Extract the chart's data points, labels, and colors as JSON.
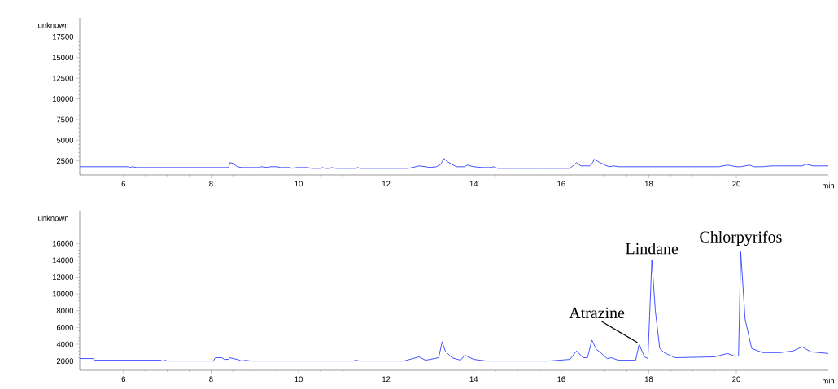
{
  "chart_data": [
    {
      "type": "line",
      "xlabel": "min",
      "ylabel": "unknown",
      "xlim": [
        5,
        22.1
      ],
      "ylim": [
        800,
        19800
      ],
      "xticks": [
        6,
        8,
        10,
        12,
        14,
        16,
        18,
        20
      ],
      "yticks": [
        2500,
        5000,
        7500,
        10000,
        12500,
        15000,
        17500
      ],
      "series": [
        {
          "color": "#3040ff",
          "x": [
            5.0,
            6.1,
            6.15,
            6.2,
            6.3,
            8.4,
            8.43,
            8.5,
            8.6,
            8.7,
            9.1,
            9.15,
            9.3,
            9.35,
            9.5,
            9.6,
            9.8,
            9.85,
            9.95,
            10.2,
            10.3,
            10.5,
            10.55,
            10.6,
            10.7,
            10.75,
            10.85,
            11.3,
            11.35,
            11.4,
            12.5,
            12.6,
            12.75,
            12.9,
            13.0,
            13.15,
            13.25,
            13.32,
            13.4,
            13.5,
            13.6,
            13.8,
            13.85,
            14.0,
            14.2,
            14.4,
            14.45,
            14.55,
            16.2,
            16.35,
            16.45,
            16.65,
            16.72,
            16.75,
            16.85,
            17.0,
            17.1,
            17.2,
            17.3,
            19.6,
            19.8,
            20.0,
            20.1,
            20.3,
            20.4,
            20.6,
            20.8,
            21.5,
            21.6,
            21.75,
            22.1
          ],
          "values": [
            1800,
            1800,
            1700,
            1800,
            1700,
            1700,
            2300,
            2200,
            1800,
            1700,
            1700,
            1800,
            1700,
            1800,
            1800,
            1700,
            1700,
            1600,
            1700,
            1700,
            1600,
            1600,
            1700,
            1600,
            1600,
            1700,
            1600,
            1600,
            1700,
            1600,
            1600,
            1700,
            1900,
            1800,
            1700,
            1800,
            2100,
            2800,
            2400,
            2100,
            1800,
            1800,
            2000,
            1800,
            1700,
            1700,
            1800,
            1600,
            1600,
            2300,
            1900,
            1900,
            2300,
            2700,
            2400,
            2000,
            1800,
            1900,
            1800,
            1800,
            2000,
            1800,
            1800,
            2000,
            1800,
            1800,
            1900,
            1900,
            2100,
            1900,
            1900
          ]
        }
      ]
    },
    {
      "type": "line",
      "xlabel": "min",
      "ylabel": "unknown",
      "xlim": [
        5,
        22.1
      ],
      "ylim": [
        900,
        19900
      ],
      "xticks": [
        6,
        8,
        10,
        12,
        14,
        16,
        18,
        20
      ],
      "yticks": [
        2000,
        4000,
        6000,
        8000,
        10000,
        12000,
        14000,
        16000
      ],
      "series": [
        {
          "color": "#3040ff",
          "x": [
            5.0,
            5.3,
            5.35,
            6.85,
            6.9,
            6.95,
            7.0,
            8.05,
            8.1,
            8.25,
            8.3,
            8.4,
            8.42,
            8.5,
            8.6,
            8.7,
            8.8,
            8.9,
            11.25,
            11.3,
            11.4,
            12.4,
            12.75,
            12.9,
            13.2,
            13.28,
            13.35,
            13.5,
            13.7,
            13.8,
            14.0,
            14.3,
            15.0,
            15.7,
            16.2,
            16.35,
            16.5,
            16.6,
            16.7,
            16.8,
            16.9,
            17.05,
            17.15,
            17.3,
            17.7,
            17.78,
            17.9,
            17.98,
            18.07,
            18.15,
            18.25,
            18.35,
            18.6,
            19.5,
            19.8,
            19.95,
            20.05,
            20.1,
            20.2,
            20.35,
            20.6,
            21.0,
            21.3,
            21.5,
            21.7,
            22.1
          ],
          "values": [
            2300,
            2300,
            2100,
            2100,
            2000,
            2100,
            2000,
            2000,
            2400,
            2400,
            2200,
            2200,
            2400,
            2300,
            2200,
            2000,
            2100,
            2000,
            2000,
            2100,
            2000,
            2000,
            2500,
            2100,
            2400,
            4300,
            3200,
            2400,
            2100,
            2700,
            2200,
            2000,
            2000,
            2000,
            2200,
            3200,
            2400,
            2400,
            4500,
            3400,
            3000,
            2300,
            2400,
            2100,
            2100,
            4000,
            2500,
            2300,
            14000,
            8000,
            3500,
            3000,
            2400,
            2500,
            2900,
            2600,
            2600,
            15000,
            7000,
            3500,
            3000,
            3000,
            3200,
            3700,
            3100,
            2900
          ]
        }
      ],
      "annotations": [
        {
          "text": "Atrazine",
          "x": 17.78,
          "y": 4000
        },
        {
          "text": "Lindane",
          "x": 18.07,
          "y": 14000
        },
        {
          "text": "Chlorpyrifos",
          "x": 20.1,
          "y": 15000
        }
      ]
    }
  ]
}
